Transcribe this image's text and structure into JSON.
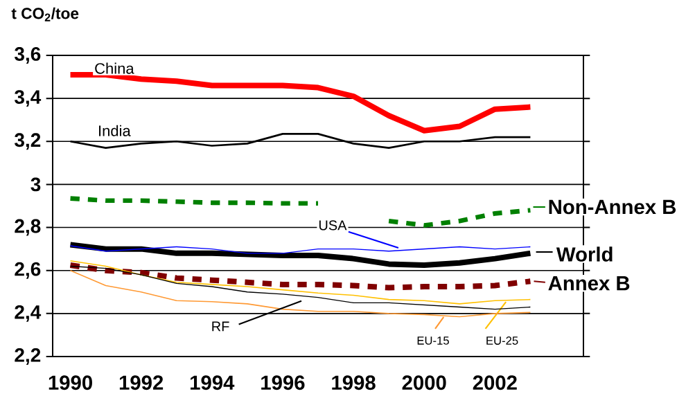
{
  "chart_data": {
    "type": "line",
    "ylabel": "t CO$_{2}$/toe",
    "categories": [
      "1990",
      null,
      "1992",
      null,
      "1994",
      null,
      "1996",
      null,
      "1998",
      null,
      "2000",
      null,
      "2002",
      null,
      null
    ],
    "series": [
      {
        "name": "China",
        "color": "#ff0000",
        "values": [
          3.51,
          3.51,
          3.49,
          3.48,
          3.46,
          3.46,
          3.46,
          3.45,
          3.41,
          3.32,
          3.25,
          3.27,
          3.35,
          3.36,
          null
        ]
      },
      {
        "name": "India",
        "color": "#000000",
        "values": [
          3.2,
          3.17,
          3.19,
          3.2,
          3.18,
          3.19,
          3.235,
          3.235,
          3.19,
          3.17,
          3.2,
          3.2,
          3.22,
          3.22,
          null
        ]
      },
      {
        "name": "Non-Annex B",
        "color": "#008000",
        "line_style": "dashed",
        "values": [
          2.935,
          2.925,
          2.925,
          2.92,
          2.915,
          2.915,
          2.912,
          2.912,
          null,
          2.83,
          2.81,
          2.83,
          2.865,
          2.88,
          null
        ]
      },
      {
        "name": "USA",
        "color": "#0000ff",
        "values": [
          2.715,
          2.69,
          2.7,
          2.71,
          2.7,
          2.68,
          2.68,
          2.7,
          2.7,
          2.69,
          2.7,
          2.71,
          2.7,
          2.71,
          null
        ]
      },
      {
        "name": "World",
        "color": "#000000",
        "values": [
          2.72,
          2.7,
          2.7,
          2.68,
          2.68,
          2.675,
          2.67,
          2.67,
          2.655,
          2.63,
          2.625,
          2.635,
          2.655,
          2.68,
          null
        ]
      },
      {
        "name": "Annex B",
        "color": "#800000",
        "line_style": "dashed",
        "values": [
          2.625,
          2.6,
          2.59,
          2.565,
          2.555,
          2.545,
          2.535,
          2.535,
          2.53,
          2.52,
          2.525,
          2.525,
          2.53,
          2.55,
          null
        ]
      },
      {
        "name": "EU-25",
        "color": "#ffc000",
        "values": [
          2.645,
          2.62,
          2.58,
          2.545,
          2.535,
          2.525,
          2.51,
          2.495,
          2.485,
          2.465,
          2.46,
          2.445,
          2.46,
          2.465,
          null
        ]
      },
      {
        "name": "RF",
        "color": "#000000",
        "values": [
          2.62,
          2.61,
          2.58,
          2.54,
          2.525,
          2.5,
          2.49,
          2.475,
          2.45,
          2.45,
          2.44,
          2.43,
          2.42,
          2.43,
          null
        ]
      },
      {
        "name": "EU-15",
        "color": "#ff9933",
        "values": [
          2.6,
          2.53,
          2.5,
          2.46,
          2.455,
          2.445,
          2.42,
          2.41,
          2.41,
          2.4,
          2.395,
          2.385,
          2.4,
          2.405,
          null
        ]
      }
    ],
    "ylim": [
      2.2,
      3.6
    ],
    "yticks": [
      {
        "value": 2.2,
        "label": "2,2"
      },
      {
        "value": 2.4,
        "label": "2,4"
      },
      {
        "value": 2.6,
        "label": "2,6"
      },
      {
        "value": 2.8,
        "label": "2,8"
      },
      3,
      {
        "value": 3.2,
        "label": "3,2"
      },
      {
        "value": 3.4,
        "label": "3,4"
      },
      {
        "value": 3.6,
        "label": "3,6"
      }
    ],
    "grid": "y",
    "legend": "right",
    "marker": "none",
    "line_style": "solid"
  }
}
